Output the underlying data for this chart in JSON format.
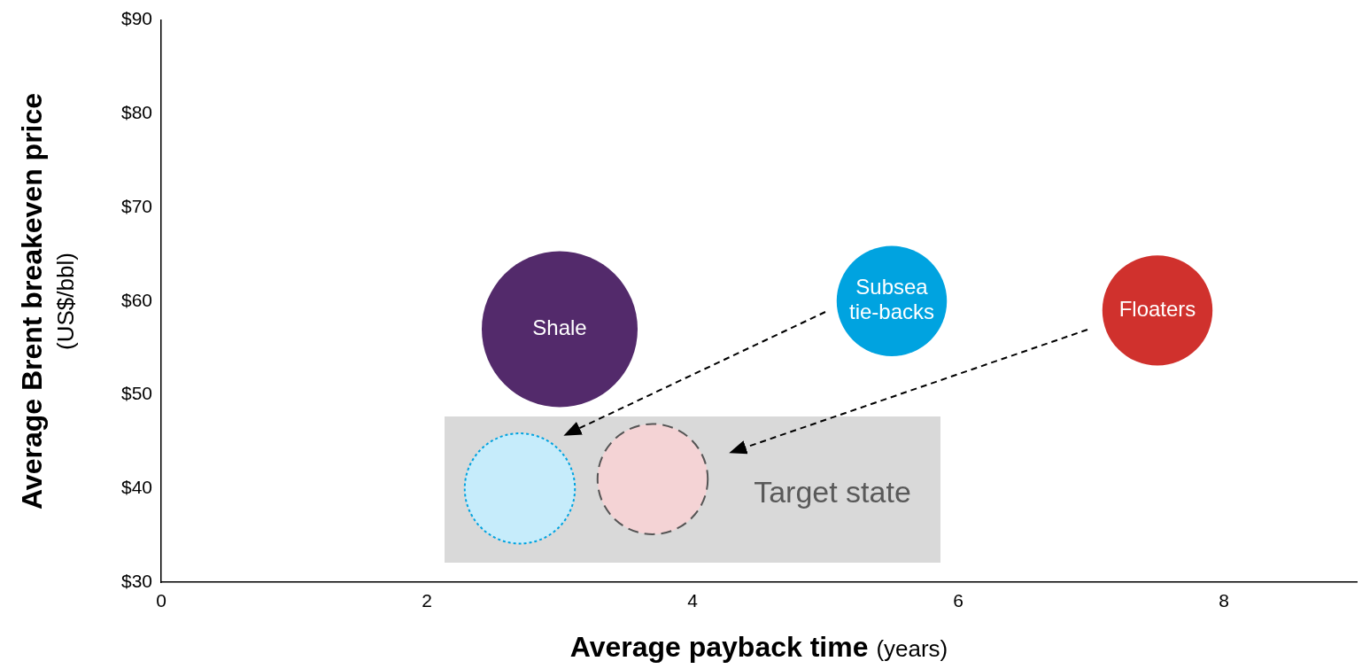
{
  "chart_data": {
    "type": "bubble",
    "xlabel": "Average payback time (years)",
    "ylabel": "Average Brent breakeven price (US$/bbl)",
    "xlim": [
      0,
      9
    ],
    "xticks": [
      0,
      2,
      4,
      6,
      8
    ],
    "ylim": [
      30,
      90
    ],
    "yticks": [
      {
        "value": 30,
        "label": "$30"
      },
      {
        "value": 40,
        "label": "$40"
      },
      {
        "value": 50,
        "label": "$50"
      },
      {
        "value": 60,
        "label": "$60"
      },
      {
        "value": 70,
        "label": "$70"
      },
      {
        "value": 80,
        "label": "$80"
      },
      {
        "value": 90,
        "label": "$90"
      }
    ],
    "series": [
      {
        "name": "Shale",
        "color": "#532a6b",
        "x": [
          3
        ],
        "values": [
          57
        ],
        "sizes": [
          1
        ]
      },
      {
        "name": "Subsea tie-backs",
        "color": "#00a3e0",
        "x": [
          5.5
        ],
        "values": [
          60
        ],
        "sizes": [
          0.5
        ]
      },
      {
        "name": "Floaters",
        "color": "#d0312d",
        "x": [
          7.5
        ],
        "values": [
          59
        ],
        "sizes": [
          0.5
        ]
      },
      {
        "color": "#c6ecfb",
        "x": [
          2.7
        ],
        "values": [
          40
        ],
        "sizes": [
          0.5
        ],
        "line_style": "dotted"
      },
      {
        "color": "#f4d3d5",
        "x": [
          3.7
        ],
        "values": [
          41
        ],
        "sizes": [
          0.5
        ],
        "line_style": "dashed"
      }
    ],
    "annotations": [
      "Target state"
    ]
  }
}
